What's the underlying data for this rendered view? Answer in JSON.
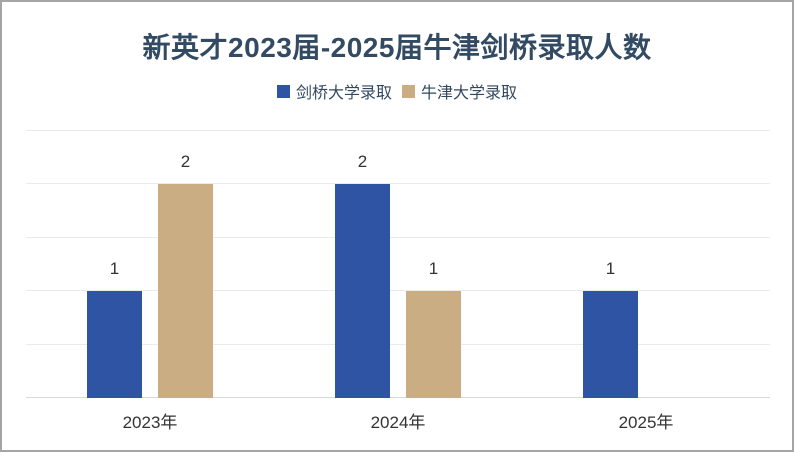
{
  "title": "新英才2023届-2025届牛津剑桥录取人数",
  "colors": {
    "title_text": "#334a63",
    "legend_text": "#33485f",
    "axis_text": "#333333",
    "value_label_text": "#333333",
    "gridline": "#eaeaea",
    "axis_line": "#d9d9d9",
    "frame_border": "#a5a5a5",
    "background": "#ffffff"
  },
  "chart_data": {
    "type": "bar",
    "title": "新英才2023届-2025届牛津剑桥录取人数",
    "categories": [
      "2023年",
      "2024年",
      "2025年"
    ],
    "series": [
      {
        "name": "剑桥大学录取",
        "color": "#2e54a3",
        "values": [
          1,
          2,
          1
        ]
      },
      {
        "name": "牛津大学录取",
        "color": "#caad83",
        "values": [
          2,
          1,
          0
        ]
      }
    ],
    "xlabel": "",
    "ylabel": "",
    "ylim": [
      0,
      2.5
    ],
    "grid_step": 0.5,
    "grid": true,
    "y_axis_labels_visible": false,
    "value_labels_visible": true,
    "legend_position": "top-center",
    "zero_value_bars_hidden": true
  }
}
